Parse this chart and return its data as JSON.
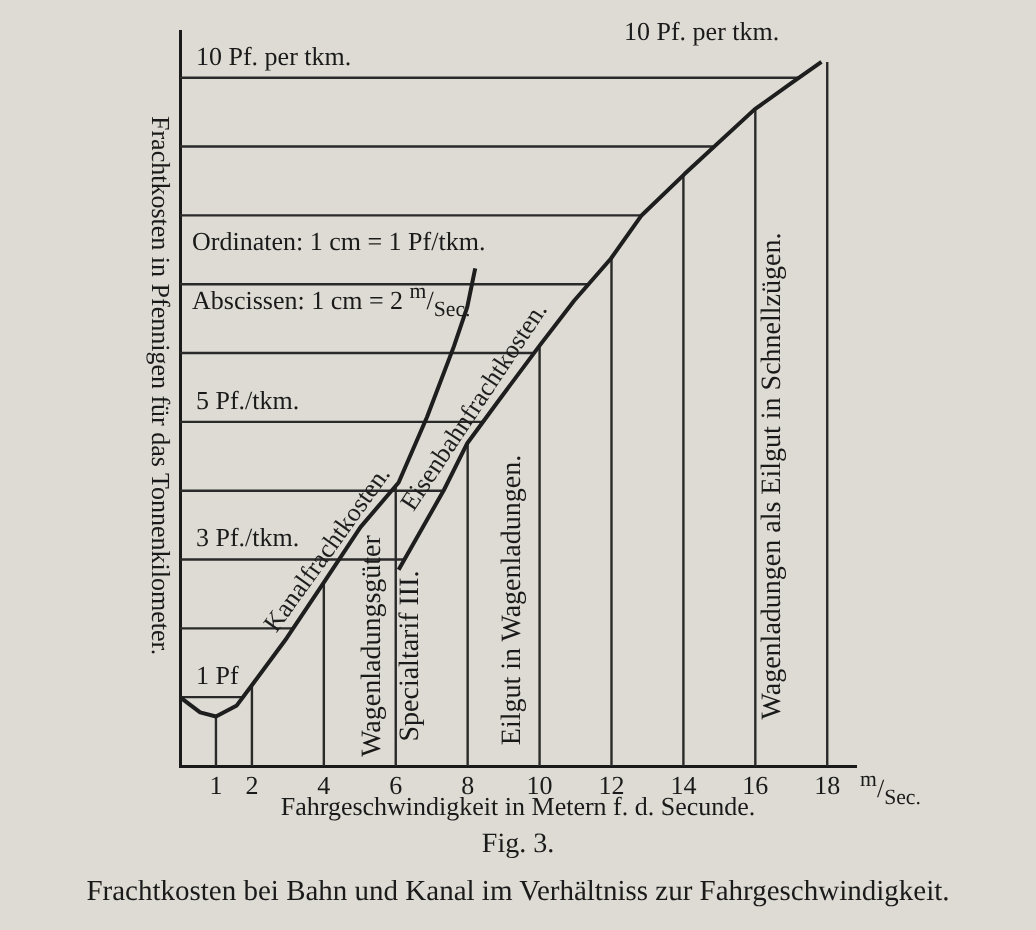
{
  "chart_data": {
    "type": "line",
    "title": "Fig. 3.",
    "subtitle": "Frachtkosten bei Bahn und Kanal im Verhältniss zur Fahrgeschwindigkeit.",
    "xlabel": "Fahrgeschwindigkeit in Metern f. d. Secunde.",
    "ylabel": "Frachtkosten in Pfennigen für das Tonnenkilometer.",
    "series": [
      {
        "name": "Kanalfrachtkosten.",
        "color": "#1e1e1e",
        "x": [
          0,
          0.56,
          1.0,
          1.58,
          2.05,
          2.97,
          4.03,
          5.02,
          6.08,
          6.87,
          7.62,
          7.99,
          8.21
        ],
        "values": [
          1.0,
          0.78,
          0.72,
          0.88,
          1.21,
          1.86,
          2.69,
          3.47,
          4.12,
          5.07,
          6.1,
          6.67,
          7.23
        ]
      },
      {
        "name": "Eisenbahnfrachtkosten.",
        "color": "#1e1e1e",
        "x": [
          6.08,
          7.34,
          7.99,
          8.92,
          9.99,
          10.96,
          11.98,
          12.82,
          14.03,
          15.98,
          17.0,
          17.84
        ],
        "values": [
          2.85,
          4.01,
          4.69,
          5.35,
          6.1,
          6.76,
          7.37,
          7.99,
          8.6,
          9.54,
          9.92,
          10.23
        ]
      }
    ],
    "xlim": [
      0,
      18.8
    ],
    "ylim": [
      0,
      10.67
    ],
    "xticks": [
      1,
      2,
      4,
      6,
      8,
      10,
      12,
      14,
      16,
      18
    ],
    "yticks": [
      {
        "value": 1,
        "label": "1 Pf"
      },
      {
        "value": 2,
        "label": null
      },
      {
        "value": 3,
        "label": "3 Pf./tkm."
      },
      {
        "value": 4,
        "label": null
      },
      {
        "value": 5,
        "label": "5 Pf./tkm."
      },
      {
        "value": 6,
        "label": null
      },
      {
        "value": 7,
        "label": null
      },
      {
        "value": 8,
        "label": null
      },
      {
        "value": 9,
        "label": null
      },
      {
        "value": 10,
        "label": "10 Pf. per tkm."
      }
    ],
    "grid": true,
    "legend": false,
    "marker": "none",
    "line_style": "solid",
    "annotations": [
      "Ordinaten: 1 cm = 1 Pf/tkm.",
      "Abscissen: 1 cm = 2 $^{m}$/$_{Sec.}$",
      "10 Pf. per tkm.",
      "$^{m}$/$_{Sec.}$",
      "Wagenladungsgüter",
      "Specialtarif III.",
      "Eilgut in Wagenladungen.",
      "Wagenladungen als Eilgut in Schnellzügen."
    ]
  }
}
